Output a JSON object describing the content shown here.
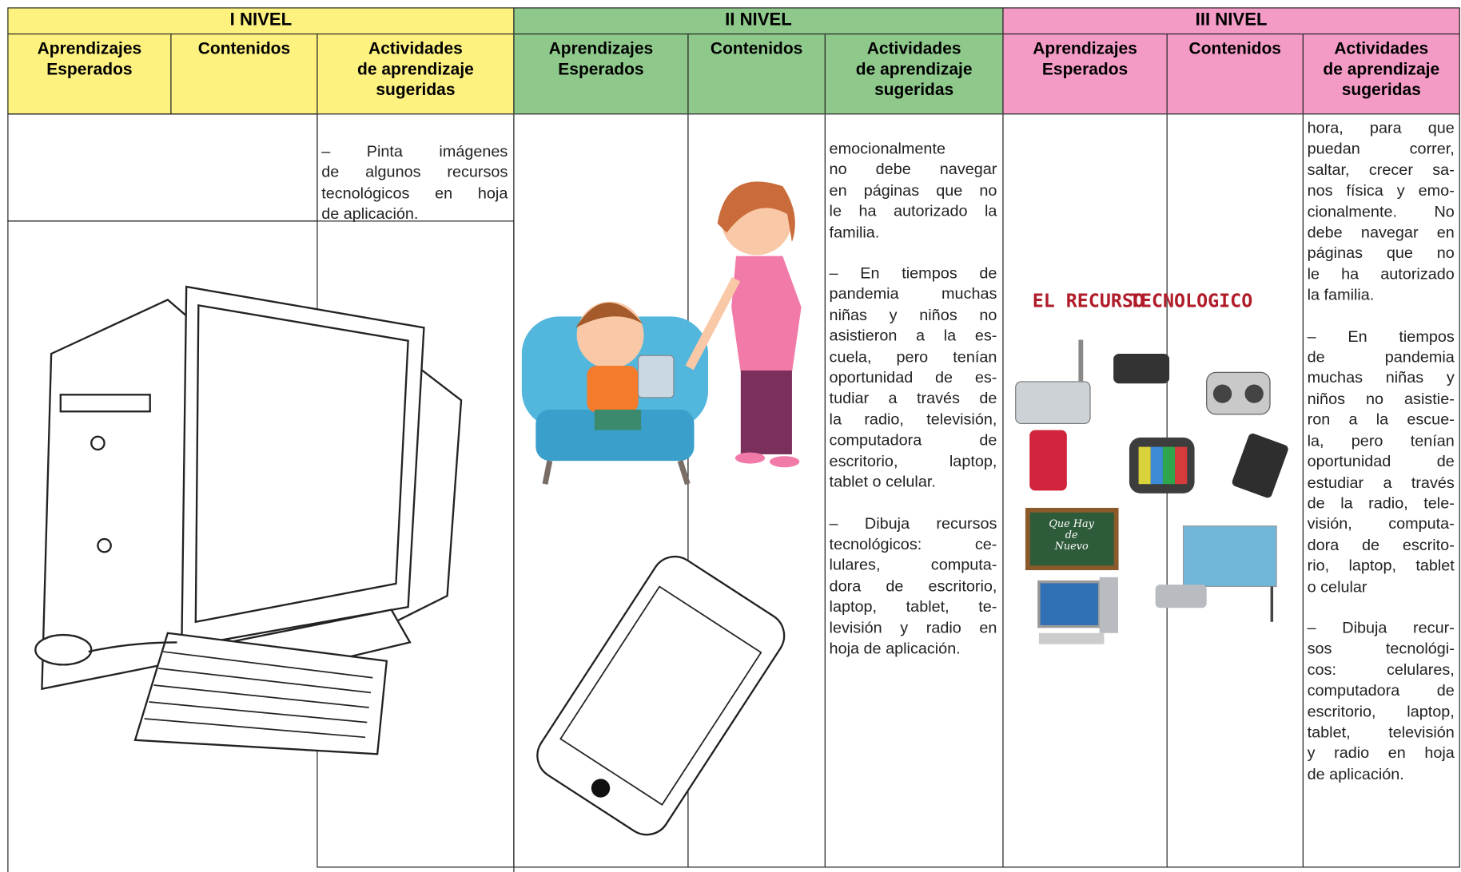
{
  "levels": [
    {
      "title": "I NIVEL",
      "columns": [
        [
          "Aprendizajes",
          "Esperados"
        ],
        [
          "Contenidos"
        ],
        [
          "Actividades",
          "de aprendizaje",
          "sugeridas"
        ]
      ]
    },
    {
      "title": "II NIVEL",
      "columns": [
        [
          "Aprendizajes",
          "Esperados"
        ],
        [
          "Contenidos"
        ],
        [
          "Actividades",
          "de aprendizaje",
          "sugeridas"
        ]
      ]
    },
    {
      "title": "III NIVEL",
      "columns": [
        [
          "Aprendizajes",
          "Esperados"
        ],
        [
          "Contenidos"
        ],
        [
          "Actividades",
          "de aprendizaje",
          "sugeridas"
        ]
      ]
    }
  ],
  "activities": [
    [
      [
        "– Pinta imágenes",
        "de algunos recursos",
        "tecnológicos en hoja",
        "de aplicación."
      ]
    ],
    [
      [
        "emocionalmente",
        "no debe navegar",
        "en páginas que no",
        "le ha autorizado la",
        "familia."
      ],
      [
        "– En tiempos de",
        "pandemia muchas",
        "niñas y niños no",
        "asistieron a la es-",
        "cuela, pero tenían",
        "oportunidad de es-",
        "tudiar a través de",
        "la radio, televisión,",
        "computadora de",
        "escritorio, laptop,",
        "tablet o celular."
      ],
      [
        "– Dibuja recursos",
        "tecnológicos: ce-",
        "lulares, computa-",
        "dora de escritorio,",
        "laptop, tablet, te-",
        "levisión y radio en",
        "hoja de aplicación."
      ]
    ],
    [
      [
        "hora, para que",
        "puedan correr,",
        "saltar, crecer sa-",
        "nos física y emo-",
        "cionalmente. No",
        "debe navegar en",
        "páginas que no",
        "le ha autorizado",
        "la familia."
      ],
      [
        "– En tiempos",
        "de pandemia",
        "muchas niñas y",
        "niños no asistie-",
        "ron a la escue-",
        "la, pero tenían",
        "oportunidad de",
        "estudiar a través",
        "de la radio, tele-",
        "visión, computa-",
        "dora de escrito-",
        "rio, laptop, tablet",
        "o celular"
      ],
      [
        "– Dibuja recur-",
        "sos tecnológi-",
        "cos: celulares,",
        "computadora de",
        "escritorio, laptop,",
        "tablet, televisión",
        "y radio en hoja",
        "de aplicación."
      ]
    ]
  ],
  "illustration": {
    "title": [
      "EL RECURSO",
      "TECNOLOGICO"
    ],
    "chalkboard": [
      "Que Hay",
      "de",
      "Nuevo"
    ]
  }
}
